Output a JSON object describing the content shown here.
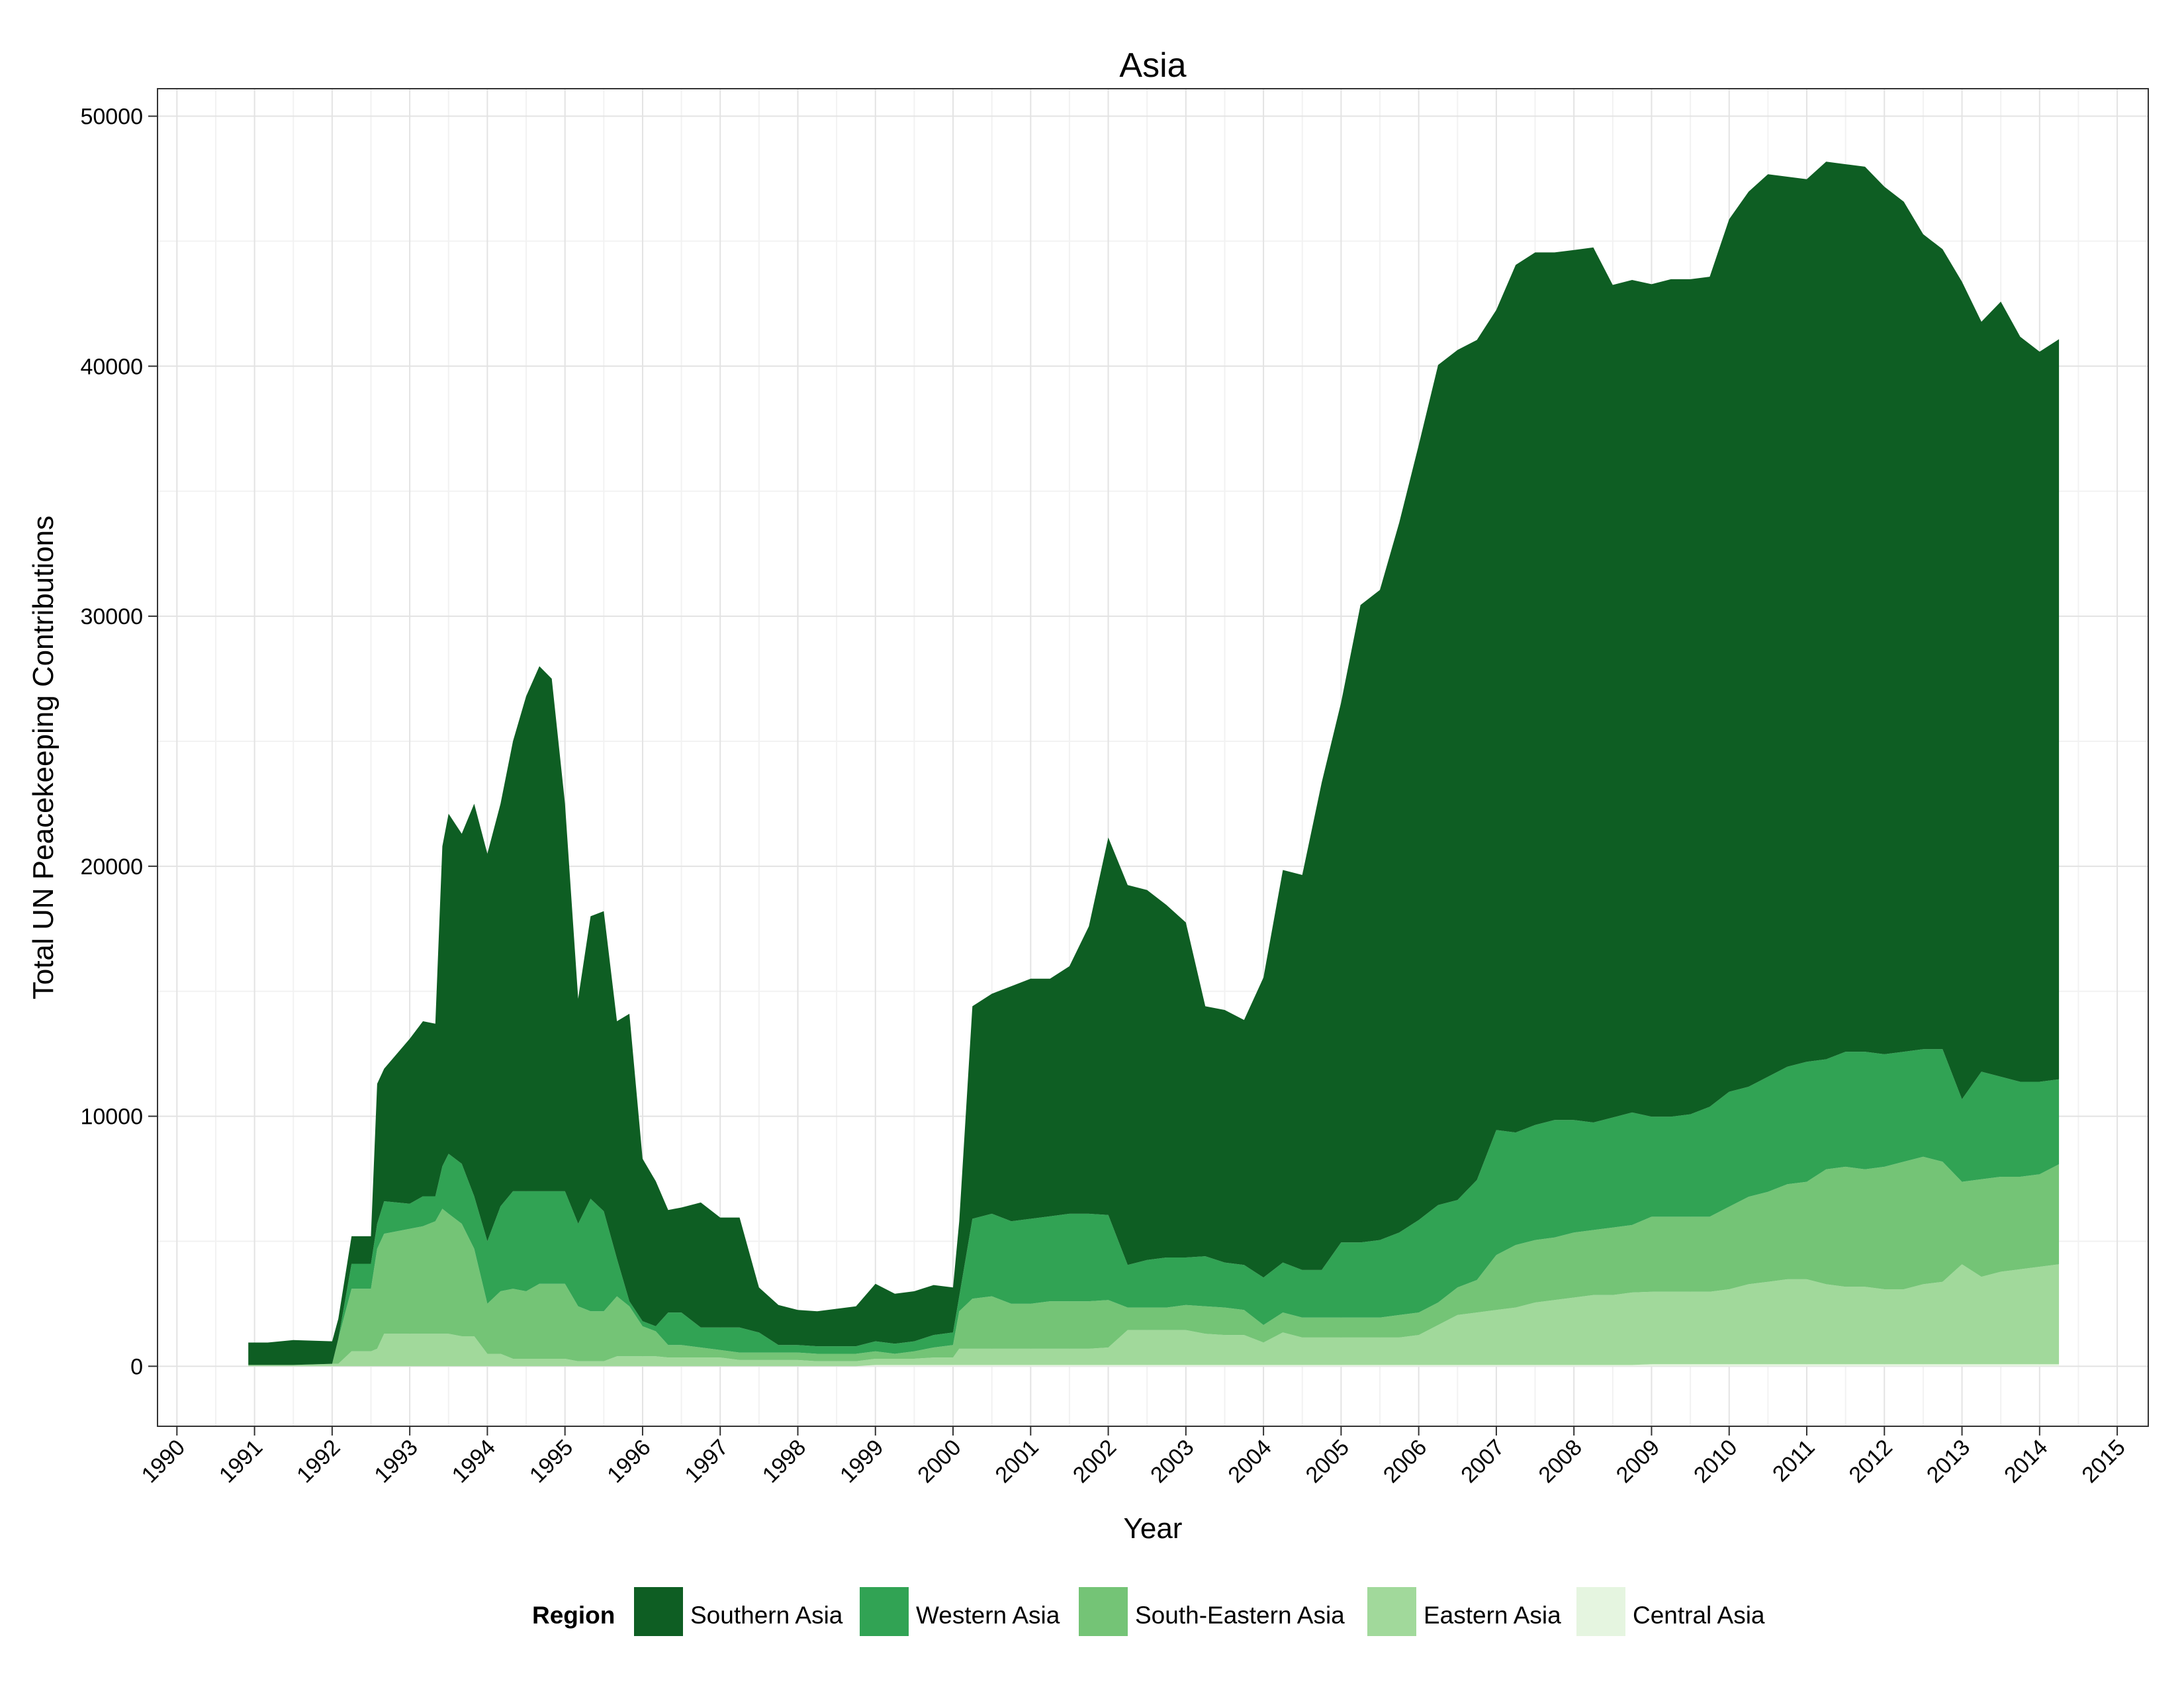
{
  "chart_data": {
    "type": "area",
    "stacked": true,
    "title": "Asia",
    "xlabel": "Year",
    "ylabel": "Total UN Peacekeeping Contributions",
    "xlim": [
      1989.75,
      2015.4
    ],
    "ylim": [
      -2400,
      51100
    ],
    "x_ticks": [
      "1990",
      "1991",
      "1992",
      "1993",
      "1994",
      "1995",
      "1996",
      "1997",
      "1998",
      "1999",
      "2000",
      "2001",
      "2002",
      "2003",
      "2004",
      "2005",
      "2006",
      "2007",
      "2008",
      "2009",
      "2010",
      "2011",
      "2012",
      "2013",
      "2014",
      "2015"
    ],
    "y_ticks": [
      "0",
      "10000",
      "20000",
      "30000",
      "40000",
      "50000"
    ],
    "grid": true,
    "legend_position": "bottom",
    "legend_title": "Region",
    "x": [
      1990.92,
      1991.17,
      1991.5,
      1992.0,
      1992.08,
      1992.25,
      1992.5,
      1992.58,
      1992.67,
      1993.0,
      1993.17,
      1993.33,
      1993.42,
      1993.5,
      1993.67,
      1993.83,
      1994.0,
      1994.17,
      1994.33,
      1994.5,
      1994.67,
      1994.83,
      1995.0,
      1995.17,
      1995.33,
      1995.5,
      1995.67,
      1995.83,
      1996.0,
      1996.17,
      1996.33,
      1996.5,
      1996.75,
      1997.0,
      1997.25,
      1997.5,
      1997.75,
      1998.0,
      1998.25,
      1998.5,
      1998.75,
      1999.0,
      1999.25,
      1999.5,
      1999.75,
      2000.0,
      2000.08,
      2000.25,
      2000.5,
      2000.75,
      2001.0,
      2001.25,
      2001.5,
      2001.75,
      2002.0,
      2002.25,
      2002.5,
      2002.75,
      2003.0,
      2003.25,
      2003.5,
      2003.75,
      2004.0,
      2004.25,
      2004.5,
      2004.75,
      2005.0,
      2005.25,
      2005.5,
      2005.75,
      2006.0,
      2006.25,
      2006.5,
      2006.75,
      2007.0,
      2007.25,
      2007.5,
      2007.75,
      2008.0,
      2008.25,
      2008.5,
      2008.75,
      2009.0,
      2009.25,
      2009.5,
      2009.75,
      2010.0,
      2010.25,
      2010.5,
      2010.75,
      2011.0,
      2011.25,
      2011.5,
      2011.75,
      2012.0,
      2012.25,
      2012.5,
      2012.75,
      2013.0,
      2013.25,
      2013.5,
      2013.75,
      2014.0,
      2014.25
    ],
    "series": [
      {
        "name": "Central Asia",
        "color": "#e5f5e0",
        "values": [
          0,
          0,
          0,
          0,
          0,
          0,
          0,
          0,
          0,
          0,
          0,
          0,
          0,
          0,
          0,
          0,
          0,
          0,
          0,
          0,
          0,
          0,
          0,
          0,
          0,
          0,
          0,
          0,
          0,
          0,
          0,
          0,
          0,
          0,
          0,
          0,
          0,
          0,
          0,
          0,
          0,
          50,
          50,
          50,
          50,
          50,
          50,
          50,
          50,
          50,
          50,
          50,
          50,
          50,
          50,
          50,
          50,
          50,
          50,
          50,
          50,
          50,
          50,
          50,
          50,
          50,
          50,
          50,
          50,
          50,
          50,
          50,
          50,
          50,
          50,
          50,
          50,
          50,
          50,
          50,
          50,
          50,
          80,
          80,
          80,
          80,
          80,
          80,
          80,
          80,
          80,
          80,
          80,
          80,
          80,
          80,
          80,
          80,
          80,
          80,
          80,
          80,
          80,
          80
        ]
      },
      {
        "name": "Eastern Asia",
        "color": "#a1d99b",
        "values": [
          50,
          50,
          50,
          100,
          100,
          600,
          600,
          700,
          1300,
          1300,
          1300,
          1300,
          1300,
          1300,
          1200,
          1200,
          500,
          500,
          300,
          300,
          300,
          300,
          300,
          200,
          200,
          200,
          400,
          400,
          400,
          400,
          350,
          350,
          350,
          350,
          250,
          250,
          250,
          250,
          200,
          200,
          200,
          250,
          250,
          250,
          300,
          300,
          650,
          650,
          650,
          650,
          650,
          650,
          650,
          650,
          700,
          1400,
          1400,
          1400,
          1400,
          1250,
          1200,
          1200,
          900,
          1300,
          1100,
          1100,
          1100,
          1100,
          1100,
          1100,
          1200,
          1600,
          2000,
          2100,
          2200,
          2300,
          2500,
          2600,
          2700,
          2800,
          2800,
          2900,
          2900,
          2900,
          2900,
          2900,
          3000,
          3200,
          3300,
          3400,
          3400,
          3200,
          3100,
          3100,
          3000,
          3000,
          3200,
          3300,
          4000,
          3500,
          3700,
          3800,
          3900,
          4000
        ]
      },
      {
        "name": "South-Eastern Asia",
        "color": "#74c476",
        "values": [
          0,
          0,
          0,
          0,
          1000,
          2500,
          2500,
          4000,
          4000,
          4200,
          4300,
          4500,
          5000,
          4800,
          4500,
          3500,
          2000,
          2500,
          2800,
          2700,
          3000,
          3000,
          3000,
          2200,
          2000,
          2000,
          2400,
          2000,
          1200,
          1000,
          500,
          500,
          400,
          300,
          300,
          300,
          300,
          300,
          300,
          300,
          300,
          300,
          200,
          300,
          400,
          500,
          1500,
          2000,
          2100,
          1800,
          1800,
          1900,
          1900,
          1900,
          1900,
          900,
          900,
          900,
          1000,
          1100,
          1100,
          1000,
          700,
          800,
          800,
          800,
          800,
          800,
          800,
          900,
          900,
          900,
          1100,
          1300,
          2200,
          2500,
          2500,
          2500,
          2600,
          2600,
          2700,
          2700,
          3000,
          3000,
          3000,
          3000,
          3300,
          3500,
          3600,
          3800,
          3900,
          4600,
          4800,
          4700,
          4900,
          5100,
          5100,
          4800,
          3300,
          3900,
          3800,
          3700,
          3700,
          4000
        ]
      },
      {
        "name": "Western Asia",
        "color": "#31a354",
        "values": [
          0,
          0,
          0,
          0,
          0,
          1000,
          1000,
          1000,
          1300,
          1000,
          1200,
          1000,
          1700,
          2400,
          2400,
          2100,
          2500,
          3400,
          3900,
          4000,
          3700,
          3700,
          3700,
          3300,
          4500,
          4000,
          1500,
          200,
          200,
          200,
          1300,
          1300,
          800,
          900,
          1000,
          800,
          300,
          300,
          300,
          300,
          300,
          400,
          400,
          400,
          500,
          500,
          600,
          3200,
          3300,
          3300,
          3400,
          3400,
          3500,
          3500,
          3400,
          1700,
          1900,
          2000,
          1900,
          2000,
          1800,
          1800,
          1900,
          2000,
          1900,
          1900,
          3000,
          3000,
          3100,
          3300,
          3700,
          3900,
          3500,
          4000,
          5000,
          4500,
          4600,
          4700,
          4500,
          4300,
          4400,
          4500,
          4000,
          4000,
          4100,
          4400,
          4600,
          4400,
          4600,
          4700,
          4800,
          4400,
          4600,
          4700,
          4500,
          4400,
          4300,
          4500,
          3300,
          4300,
          4000,
          3800,
          3700,
          3400
        ]
      },
      {
        "name": "Southern Asia",
        "color": "#0e5e23",
        "values": [
          900,
          900,
          1000,
          900,
          800,
          1100,
          1100,
          5600,
          5300,
          6600,
          7000,
          6900,
          12800,
          13600,
          13200,
          15700,
          15500,
          16100,
          18000,
          19800,
          21000,
          20500,
          15500,
          9000,
          11300,
          12000,
          9500,
          11500,
          6500,
          5800,
          4100,
          4200,
          5000,
          4400,
          4400,
          1800,
          1600,
          1400,
          1400,
          1500,
          1600,
          2300,
          2000,
          2000,
          2000,
          1800,
          3000,
          8500,
          8800,
          9400,
          9600,
          9500,
          9900,
          11500,
          15100,
          15200,
          14800,
          14100,
          13400,
          10000,
          10100,
          9800,
          12000,
          15700,
          15800,
          19500,
          21600,
          25500,
          26000,
          28400,
          31000,
          33600,
          34000,
          33600,
          32800,
          34700,
          34900,
          34700,
          34800,
          35000,
          33300,
          33300,
          33300,
          33500,
          33400,
          33200,
          34900,
          35800,
          36100,
          35600,
          35300,
          35900,
          35500,
          35400,
          34700,
          34000,
          32600,
          32000,
          32700,
          30000,
          31000,
          29800,
          29200,
          29600
        ]
      }
    ]
  }
}
